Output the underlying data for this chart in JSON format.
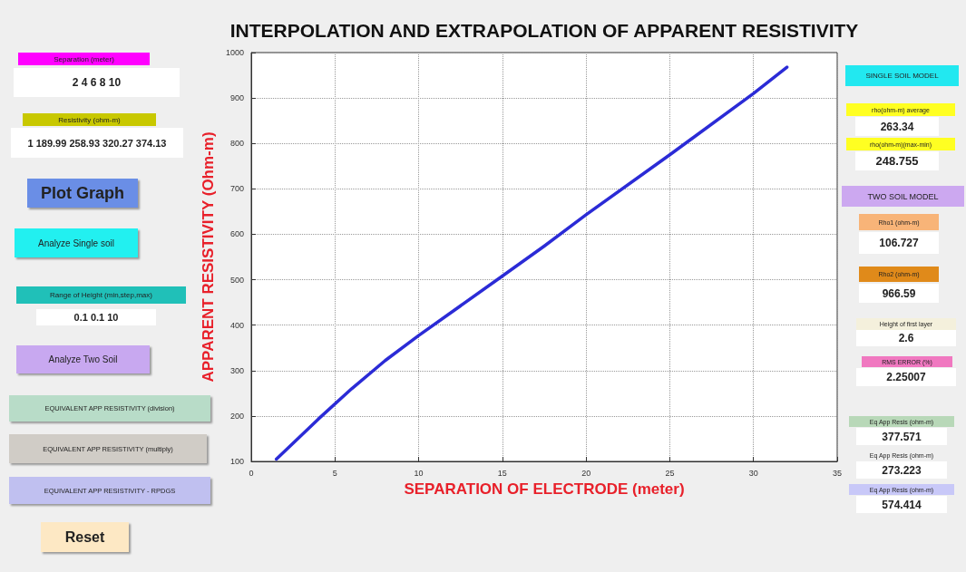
{
  "chart_data": {
    "type": "line",
    "title": "INTERPOLATION AND EXTRAPOLATION OF APPARENT RESISTIVITY",
    "xlabel": "SEPARATION OF ELECTRODE (meter)",
    "ylabel": "APPARENT RESISTIVITY (Ohm-m)",
    "series": [
      {
        "color": "#2b2bd6",
        "x": [
          1.5,
          4,
          6,
          8,
          10,
          15,
          17.5,
          20,
          25,
          30,
          32
        ],
        "values": [
          105,
          193,
          260,
          322,
          377,
          508,
          574,
          643,
          775,
          910,
          968
        ]
      }
    ],
    "xlim": [
      0,
      35
    ],
    "xticks": [
      0,
      5,
      10,
      15,
      20,
      25,
      30,
      35
    ],
    "ylim": [
      100,
      1000
    ],
    "yticks": [
      100,
      200,
      300,
      400,
      500,
      600,
      700,
      800,
      900,
      1000
    ],
    "grid": true,
    "annotations": [
      "Separation (meter)",
      "2 4 6 8 10",
      "Resistivity (ohm-m)",
      "1 189.99 258.93 320.27 374.13",
      "Plot Graph",
      "Analyze Single soil",
      "Range of Height (min,step,max)",
      "0.1 0.1 10",
      "Analyze Two Soil",
      "EQUIVALENT APP RESISTIVITY (division)",
      "EQUIVALENT APP RESISTIVITY (multiply)",
      "EQUIVALENT APP RESISTIVITY - RPDGS",
      "Reset",
      "SINGLE SOIL MODEL",
      "rho(ohm-m) average",
      "263.34",
      "rho(ohm-m)(max-min)",
      "248.755",
      "TWO SOIL MODEL",
      "Rho1 (ohm-m)",
      "106.727",
      "Rho2 (ohm-m)",
      "966.59",
      "Height of first layer",
      "2.6",
      "RMS ERROR (%)",
      "2.25007",
      "Eq App Resis (ohm-m)",
      "377.571",
      "Eq App Resis (ohm-m)",
      "273.223",
      "Eq App Resis (ohm-m)",
      "574.414"
    ]
  }
}
